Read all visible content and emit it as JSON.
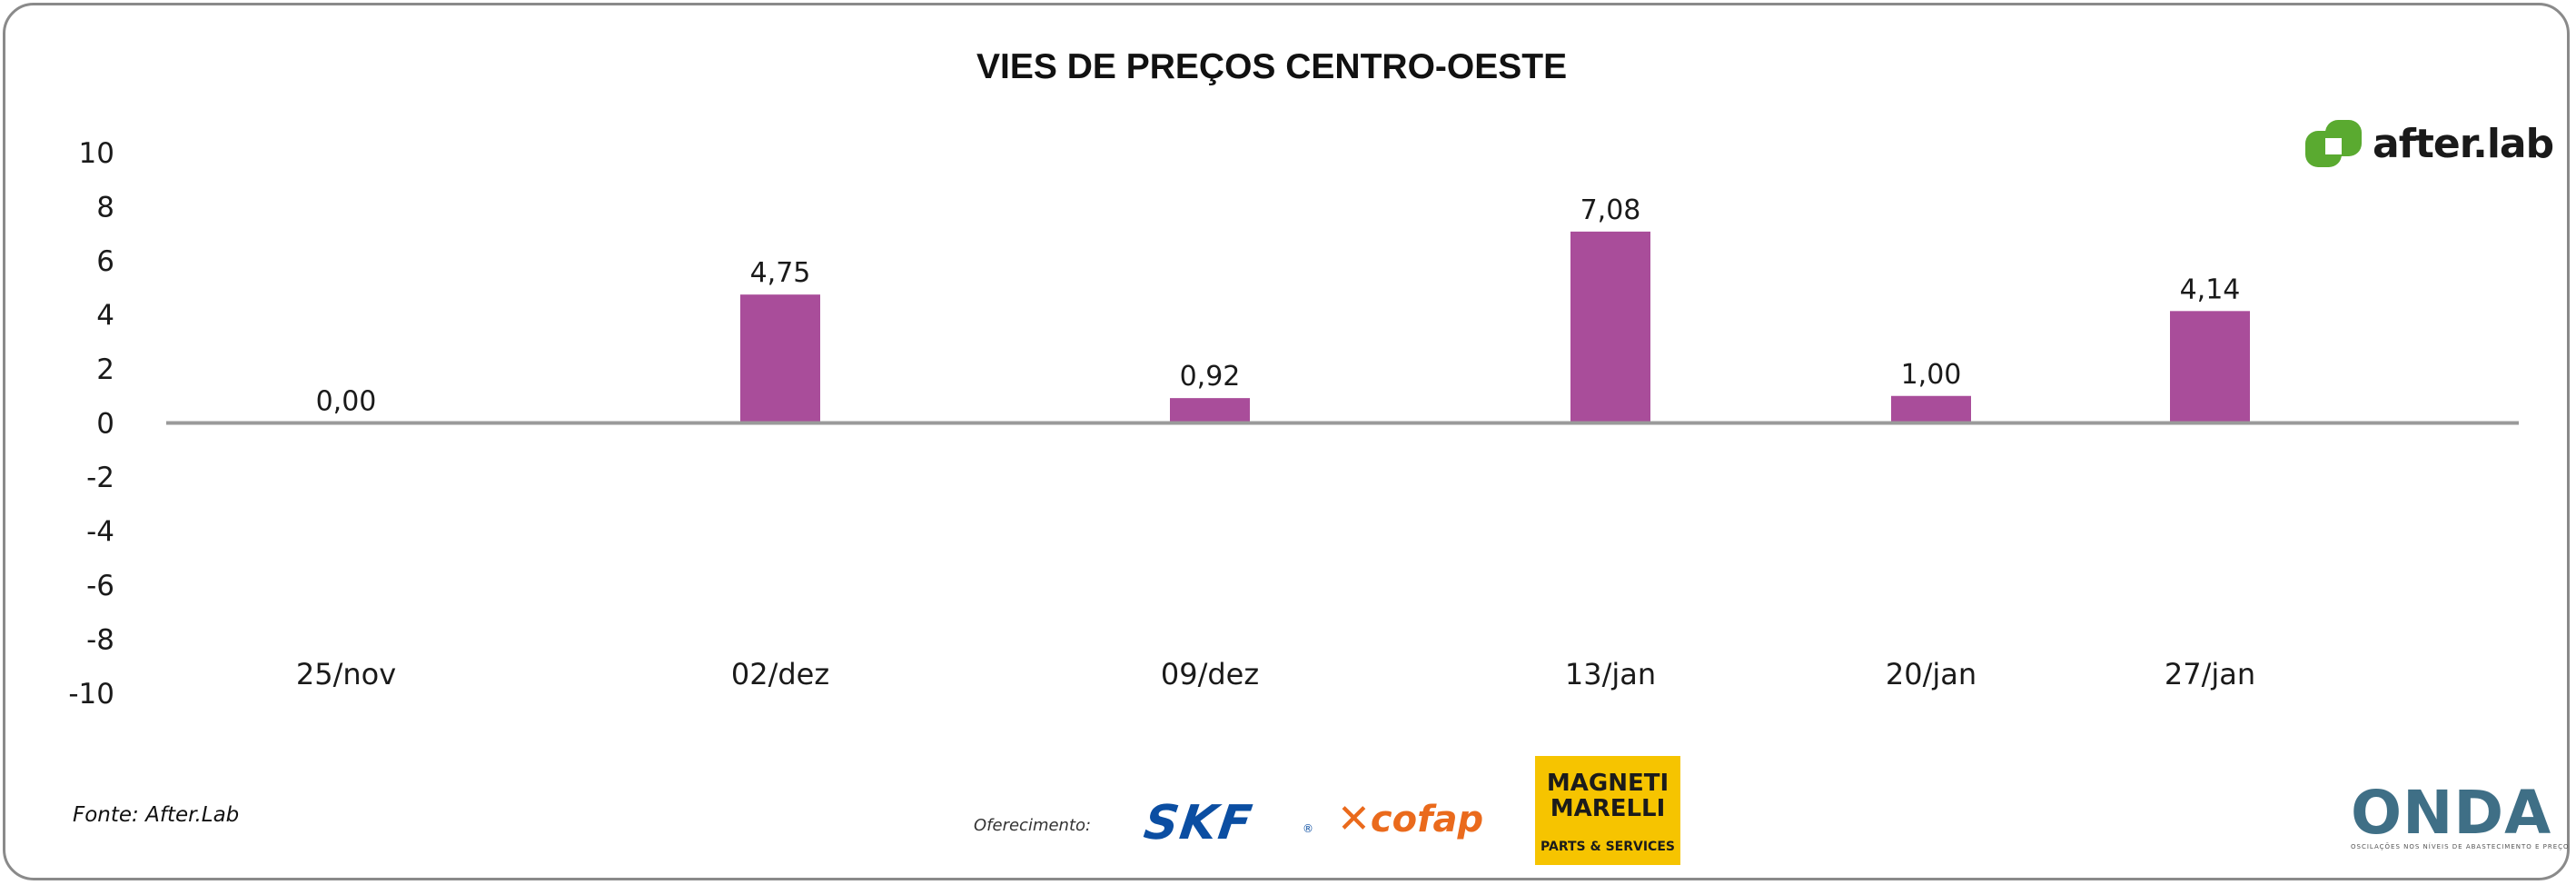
{
  "title": "VIES DE PREÇOS CENTRO-OESTE",
  "source": "Fonte: After.Lab",
  "sponsor_label": "Oferecimento:",
  "logos": {
    "afterlab": "after.lab",
    "skf": "SKF",
    "cofap": "cofap",
    "magneti_line1": "MAGNETI",
    "magneti_line2": "MARELLI",
    "magneti_line3": "PARTS & SERVICES",
    "onda": "ONDA",
    "onda_sub": "OSCILAÇÕES NOS NÍVEIS DE ABASTECIMENTO E PREÇO"
  },
  "colors": {
    "bar": "#a94d9a",
    "zero_line": "#9a9a9a",
    "afterlab_green": "#5aaa30",
    "frame": "#8a8a8a"
  },
  "chart_data": {
    "type": "bar",
    "title": "VIES DE PREÇOS CENTRO-OESTE",
    "categories": [
      "25/nov",
      "02/dez",
      "09/dez",
      "13/jan",
      "20/jan",
      "27/jan"
    ],
    "values": [
      0.0,
      4.75,
      0.92,
      7.08,
      1.0,
      4.14
    ],
    "data_labels": [
      "0,00",
      "4,75",
      "0,92",
      "7,08",
      "1,00",
      "4,14"
    ],
    "yticks": [
      10,
      8,
      6,
      4,
      2,
      0,
      -2,
      -4,
      -6,
      -8,
      -10
    ],
    "ylim": [
      -10,
      10
    ],
    "grid": false,
    "legend": "none"
  }
}
